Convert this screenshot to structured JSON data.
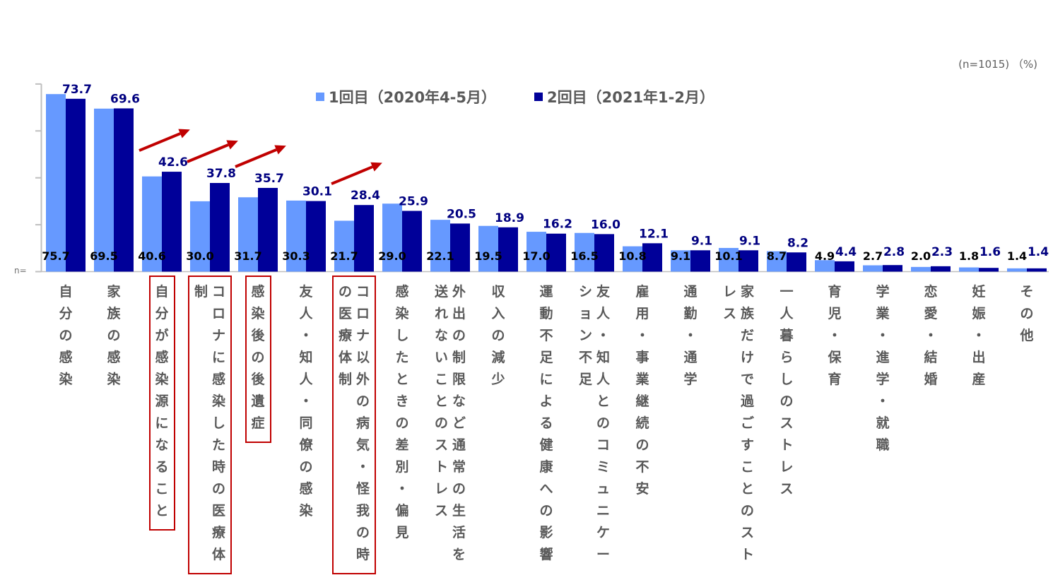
{
  "note": "(n=1015) （%)",
  "y_label": "n=",
  "chart_data": {
    "type": "bar",
    "title": "",
    "xlabel": "",
    "ylabel": "",
    "ylim": [
      0,
      80
    ],
    "categories": [
      "自分の感染",
      "家族の感染",
      "自分が感染源になること",
      "コロナに感染した時の医療体制",
      "感染後の後遺症",
      "友人・知人・同僚の感染",
      "コロナ以外の病気・怪我の時の医療体制",
      "感染したときの差別・偏見",
      "外出の制限など通常の生活を送れないことのストレス",
      "収入の減少",
      "運動不足による健康への影響",
      "友人・知人とのコミュニケーション不足",
      "雇用・事業継続の不安",
      "通勤・通学",
      "家族だけで過ごすことのストレス",
      "一人暮らしのストレス",
      "育児・保育",
      "学業・進学・就職",
      "恋愛・結婚",
      "妊娠・出産",
      "その他"
    ],
    "category_columns": [
      [
        "自分の感染"
      ],
      [
        "家族の感染"
      ],
      [
        "自分が感染源になること"
      ],
      [
        "コロナに感染した時の医療体",
        "制"
      ],
      [
        "感染後の後遺症"
      ],
      [
        "友人・知人・同僚の感染"
      ],
      [
        "コロナ以外の病気・怪我の時",
        "の医療体制"
      ],
      [
        "感染したときの差別・偏見"
      ],
      [
        "外出の制限など通常の生活を",
        "送れないことのストレス"
      ],
      [
        "収入の減少"
      ],
      [
        "運動不足による健康への影響"
      ],
      [
        "友人・知人とのコミュニケー",
        "ション不足"
      ],
      [
        "雇用・事業継続の不安"
      ],
      [
        "通勤・通学"
      ],
      [
        "家族だけで過ごすことのスト",
        "レス"
      ],
      [
        "一人暮らしのストレス"
      ],
      [
        "育児・保育"
      ],
      [
        "学業・進学・就職"
      ],
      [
        "恋愛・結婚"
      ],
      [
        "妊娠・出産"
      ],
      [
        "その他"
      ]
    ],
    "series": [
      {
        "name": "1回目（2020年4-5月）",
        "color": "#6699ff",
        "values": [
          75.7,
          69.5,
          40.6,
          30.0,
          31.7,
          30.3,
          21.7,
          29.0,
          22.1,
          19.5,
          17.0,
          16.5,
          10.8,
          9.1,
          10.1,
          8.7,
          4.9,
          2.7,
          2.0,
          1.8,
          1.4
        ],
        "labels": [
          "75.7",
          "69.5",
          "40.6",
          "30.0",
          "31.7",
          "30.3",
          "21.7",
          "29.0",
          "22.1",
          "19.5",
          "17.0",
          "16.5",
          "10.8",
          "9.1",
          "10.1",
          "8.7",
          "4.9",
          "2.7",
          "2.0",
          "1.8",
          "1.4"
        ]
      },
      {
        "name": "2回目（2021年1-2月）",
        "color": "#000099",
        "values": [
          73.7,
          69.6,
          42.6,
          37.8,
          35.7,
          30.1,
          28.4,
          25.9,
          20.5,
          18.9,
          16.2,
          16.0,
          12.1,
          9.1,
          9.1,
          8.2,
          4.4,
          2.8,
          2.3,
          1.6,
          1.4
        ],
        "labels": [
          "73.7",
          "69.6",
          "42.6",
          "37.8",
          "35.7",
          "30.1",
          "28.4",
          "25.9",
          "20.5",
          "18.9",
          "16.2",
          "16.0",
          "12.1",
          "9.1",
          "9.1",
          "8.2",
          "4.4",
          "2.8",
          "2.3",
          "1.6",
          "1.4"
        ]
      }
    ],
    "highlighted_categories": [
      2,
      3,
      4,
      6
    ],
    "arrow_color": "#c00000",
    "axis_color": "#bfbfbf",
    "label_colors": {
      "series1": "#000000",
      "series2": "#000080",
      "category": "#595959"
    }
  }
}
